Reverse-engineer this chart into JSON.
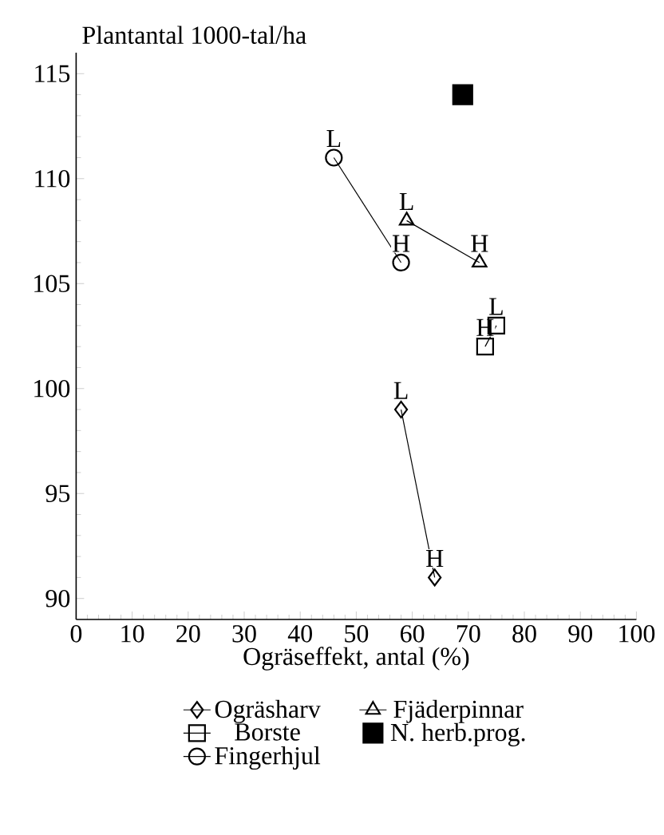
{
  "chart_data": {
    "type": "line",
    "xlabel": "Ogräseffekt, antal (%)",
    "ylabel": "Plantantal 1000-tal/ha",
    "xlim": [
      0,
      100
    ],
    "ylim": [
      89,
      116
    ],
    "xticks": [
      0,
      10,
      20,
      30,
      40,
      50,
      60,
      70,
      80,
      90,
      100
    ],
    "yticks": [
      90,
      95,
      100,
      105,
      110,
      115
    ],
    "legend": "bottom",
    "series": [
      {
        "name": "Ogräsharv",
        "color": "#000000",
        "marker": "diamond",
        "x": [
          58,
          64
        ],
        "values": [
          99,
          91
        ]
      },
      {
        "name": "Fjäderpinnar",
        "color": "#000000",
        "marker": "triangle",
        "x": [
          59,
          72
        ],
        "values": [
          108,
          106
        ]
      },
      {
        "name": "Borste",
        "color": "#000000",
        "marker": "square",
        "x": [
          75,
          73
        ],
        "values": [
          103,
          102
        ]
      },
      {
        "name": "N. herb.prog.",
        "color": "#000000",
        "type": "scatter",
        "marker": "square",
        "x": [
          69
        ],
        "values": [
          114
        ]
      },
      {
        "name": "Fingerhjul",
        "color": "#000000",
        "marker": "circle",
        "x": [
          46,
          58
        ],
        "values": [
          111,
          106
        ]
      }
    ],
    "annotations": [
      {
        "text": "L",
        "x": 58,
        "y": 99
      },
      {
        "text": "H",
        "x": 64,
        "y": 91
      },
      {
        "text": "L",
        "x": 59,
        "y": 108
      },
      {
        "text": "H",
        "x": 72,
        "y": 106
      },
      {
        "text": "L",
        "x": 75,
        "y": 103
      },
      {
        "text": "H",
        "x": 73,
        "y": 102
      },
      {
        "text": "L",
        "x": 46,
        "y": 111
      },
      {
        "text": "H",
        "x": 58,
        "y": 106
      }
    ]
  }
}
